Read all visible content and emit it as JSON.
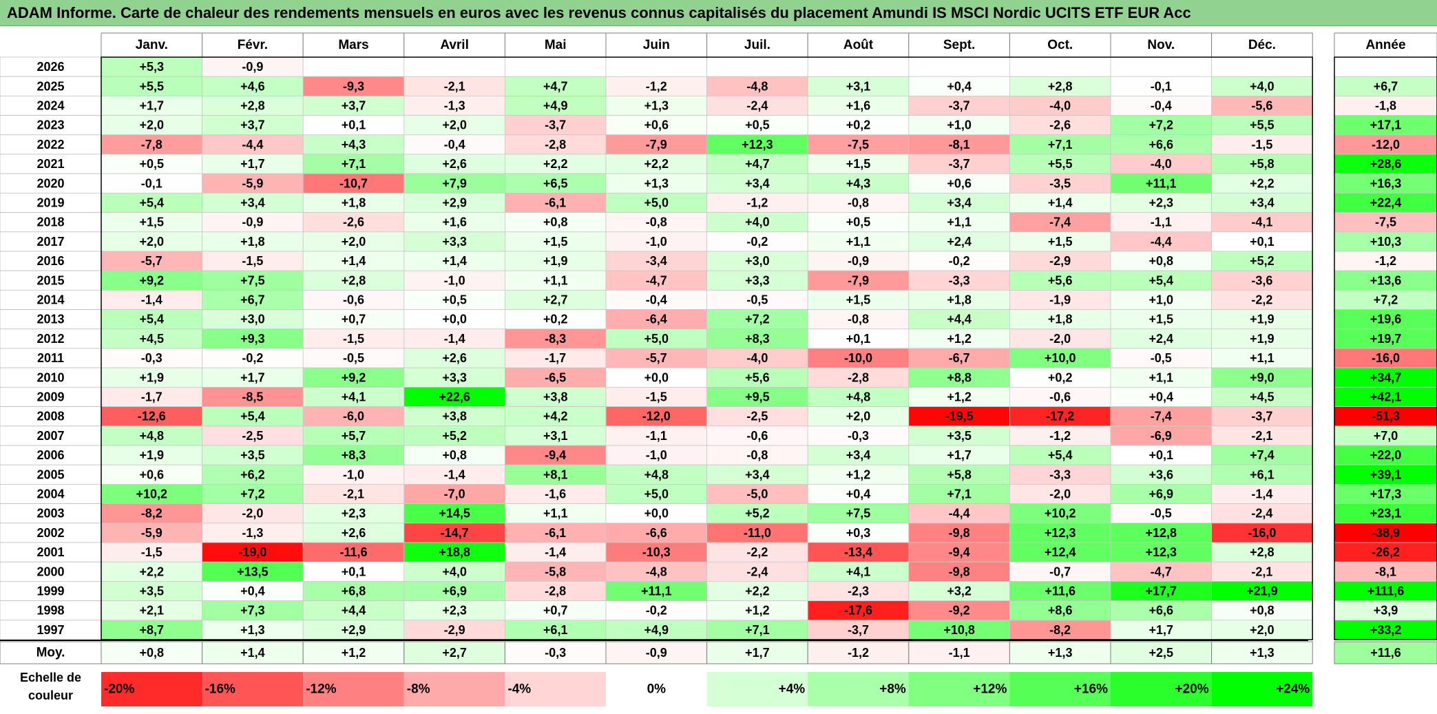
{
  "title": "ADAM Informe. Carte de chaleur des rendements mensuels en euros avec les revenus connus capitalisés du placement Amundi IS MSCI Nordic UCITS ETF EUR Acc",
  "chart_data": {
    "type": "heatmap",
    "months": [
      "Janv.",
      "Févr.",
      "Mars",
      "Avril",
      "Mai",
      "Juin",
      "Juil.",
      "Août",
      "Sept.",
      "Oct.",
      "Nov.",
      "Déc."
    ],
    "year_header": "Année",
    "average_label": "Moy.",
    "rows": [
      {
        "year": "2026",
        "values": [
          "+5,3",
          "-0,9",
          "",
          "",
          "",
          "",
          "",
          "",
          "",
          "",
          "",
          ""
        ],
        "annual": ""
      },
      {
        "year": "2025",
        "values": [
          "+5,5",
          "+4,6",
          "-9,3",
          "-2,1",
          "+4,7",
          "-1,2",
          "-4,8",
          "+3,1",
          "+0,4",
          "+2,8",
          "-0,1",
          "+4,0"
        ],
        "annual": "+6,7"
      },
      {
        "year": "2024",
        "values": [
          "+1,7",
          "+2,8",
          "+3,7",
          "-1,3",
          "+4,9",
          "+1,3",
          "-2,4",
          "+1,6",
          "-3,7",
          "-4,0",
          "-0,4",
          "-5,6"
        ],
        "annual": "-1,8"
      },
      {
        "year": "2023",
        "values": [
          "+2,0",
          "+3,7",
          "+0,1",
          "+2,0",
          "-3,7",
          "+0,6",
          "+0,5",
          "+0,2",
          "+1,0",
          "-2,6",
          "+7,2",
          "+5,5"
        ],
        "annual": "+17,1"
      },
      {
        "year": "2022",
        "values": [
          "-7,8",
          "-4,4",
          "+4,3",
          "-0,4",
          "-2,8",
          "-7,9",
          "+12,3",
          "-7,5",
          "-8,1",
          "+7,1",
          "+6,6",
          "-1,5"
        ],
        "annual": "-12,0"
      },
      {
        "year": "2021",
        "values": [
          "+0,5",
          "+1,7",
          "+7,1",
          "+2,6",
          "+2,2",
          "+2,2",
          "+4,7",
          "+1,5",
          "-3,7",
          "+5,5",
          "-4,0",
          "+5,8"
        ],
        "annual": "+28,6"
      },
      {
        "year": "2020",
        "values": [
          "-0,1",
          "-5,9",
          "-10,7",
          "+7,9",
          "+6,5",
          "+1,3",
          "+3,4",
          "+4,3",
          "+0,6",
          "-3,5",
          "+11,1",
          "+2,2"
        ],
        "annual": "+16,3"
      },
      {
        "year": "2019",
        "values": [
          "+5,4",
          "+3,4",
          "+1,8",
          "+2,9",
          "-6,1",
          "+5,0",
          "-1,2",
          "-0,8",
          "+3,4",
          "+1,4",
          "+2,3",
          "+3,4"
        ],
        "annual": "+22,4"
      },
      {
        "year": "2018",
        "values": [
          "+1,5",
          "-0,9",
          "-2,6",
          "+1,6",
          "+0,8",
          "-0,8",
          "+4,0",
          "+0,5",
          "+1,1",
          "-7,4",
          "-1,1",
          "-4,1"
        ],
        "annual": "-7,5"
      },
      {
        "year": "2017",
        "values": [
          "+2,0",
          "+1,8",
          "+2,0",
          "+3,3",
          "+1,5",
          "-1,0",
          "-0,2",
          "+1,1",
          "+2,4",
          "+1,5",
          "-4,4",
          "+0,1"
        ],
        "annual": "+10,3"
      },
      {
        "year": "2016",
        "values": [
          "-5,7",
          "-1,5",
          "+1,4",
          "+1,4",
          "+1,9",
          "-3,4",
          "+3,0",
          "-0,9",
          "-0,2",
          "-2,9",
          "+0,8",
          "+5,2"
        ],
        "annual": "-1,2"
      },
      {
        "year": "2015",
        "values": [
          "+9,2",
          "+7,5",
          "+2,8",
          "-1,0",
          "+1,1",
          "-4,7",
          "+3,3",
          "-7,9",
          "-3,3",
          "+5,6",
          "+5,4",
          "-3,6"
        ],
        "annual": "+13,6"
      },
      {
        "year": "2014",
        "values": [
          "-1,4",
          "+6,7",
          "-0,6",
          "+0,5",
          "+2,7",
          "-0,4",
          "-0,5",
          "+1,5",
          "+1,8",
          "-1,9",
          "+1,0",
          "-2,2"
        ],
        "annual": "+7,2"
      },
      {
        "year": "2013",
        "values": [
          "+5,4",
          "+3,0",
          "+0,7",
          "+0,0",
          "+0,2",
          "-6,4",
          "+7,2",
          "-0,8",
          "+4,4",
          "+1,8",
          "+1,5",
          "+1,9"
        ],
        "annual": "+19,6"
      },
      {
        "year": "2012",
        "values": [
          "+4,5",
          "+9,3",
          "-1,5",
          "-1,4",
          "-8,3",
          "+5,0",
          "+8,3",
          "+0,1",
          "+1,2",
          "-2,0",
          "+2,4",
          "+1,9"
        ],
        "annual": "+19,7"
      },
      {
        "year": "2011",
        "values": [
          "-0,3",
          "-0,2",
          "-0,5",
          "+2,6",
          "-1,7",
          "-5,7",
          "-4,0",
          "-10,0",
          "-6,7",
          "+10,0",
          "-0,5",
          "+1,1"
        ],
        "annual": "-16,0"
      },
      {
        "year": "2010",
        "values": [
          "+1,9",
          "+1,7",
          "+9,2",
          "+3,3",
          "-6,5",
          "+0,0",
          "+5,6",
          "-2,8",
          "+8,8",
          "+0,2",
          "+1,1",
          "+9,0"
        ],
        "annual": "+34,7"
      },
      {
        "year": "2009",
        "values": [
          "-1,7",
          "-8,5",
          "+4,1",
          "+22,6",
          "+3,8",
          "-1,5",
          "+9,5",
          "+4,8",
          "+1,2",
          "-0,6",
          "+0,4",
          "+4,5"
        ],
        "annual": "+42,1"
      },
      {
        "year": "2008",
        "values": [
          "-12,6",
          "+5,4",
          "-6,0",
          "+3,8",
          "+4,2",
          "-12,0",
          "-2,5",
          "+2,0",
          "-19,5",
          "-17,2",
          "-7,4",
          "-3,7"
        ],
        "annual": "-51,3"
      },
      {
        "year": "2007",
        "values": [
          "+4,8",
          "-2,5",
          "+5,7",
          "+5,2",
          "+3,1",
          "-1,1",
          "-0,6",
          "-0,3",
          "+3,5",
          "-1,2",
          "-6,9",
          "-2,1"
        ],
        "annual": "+7,0"
      },
      {
        "year": "2006",
        "values": [
          "+1,9",
          "+3,5",
          "+8,3",
          "+0,8",
          "-9,4",
          "-1,0",
          "-0,8",
          "+3,4",
          "+1,7",
          "+5,4",
          "+0,1",
          "+7,4"
        ],
        "annual": "+22,0"
      },
      {
        "year": "2005",
        "values": [
          "+0,6",
          "+6,2",
          "-1,0",
          "-1,4",
          "+8,1",
          "+4,8",
          "+3,4",
          "+1,2",
          "+5,8",
          "-3,3",
          "+3,6",
          "+6,1"
        ],
        "annual": "+39,1"
      },
      {
        "year": "2004",
        "values": [
          "+10,2",
          "+7,2",
          "-2,1",
          "-7,0",
          "-1,6",
          "+5,0",
          "-5,0",
          "+0,4",
          "+7,1",
          "-2,0",
          "+6,9",
          "-1,4"
        ],
        "annual": "+17,3"
      },
      {
        "year": "2003",
        "values": [
          "-8,2",
          "-2,0",
          "+2,3",
          "+14,5",
          "+1,1",
          "+0,0",
          "+5,2",
          "+7,5",
          "-4,4",
          "+10,2",
          "-0,5",
          "-2,4"
        ],
        "annual": "+23,1"
      },
      {
        "year": "2002",
        "values": [
          "-5,9",
          "-1,3",
          "+2,6",
          "-14,7",
          "-6,1",
          "-6,6",
          "-11,0",
          "+0,3",
          "-9,8",
          "+12,3",
          "+12,8",
          "-16,0"
        ],
        "annual": "-38,9"
      },
      {
        "year": "2001",
        "values": [
          "-1,5",
          "-19,0",
          "-11,6",
          "+18,8",
          "-1,4",
          "-10,3",
          "-2,2",
          "-13,4",
          "-9,4",
          "+12,4",
          "+12,3",
          "+2,8"
        ],
        "annual": "-26,2"
      },
      {
        "year": "2000",
        "values": [
          "+2,2",
          "+13,5",
          "+0,1",
          "+4,0",
          "-5,8",
          "-4,8",
          "-2,4",
          "+4,1",
          "-9,8",
          "-0,7",
          "-4,7",
          "-2,1"
        ],
        "annual": "-8,1"
      },
      {
        "year": "1999",
        "values": [
          "+3,5",
          "+0,4",
          "+6,8",
          "+6,9",
          "-2,8",
          "+11,1",
          "+2,2",
          "-2,3",
          "+3,2",
          "+11,6",
          "+17,7",
          "+21,9"
        ],
        "annual": "+111,6"
      },
      {
        "year": "1998",
        "values": [
          "+2,1",
          "+7,3",
          "+4,4",
          "+2,3",
          "+0,7",
          "-0,2",
          "+1,2",
          "-17,6",
          "-9,2",
          "+8,6",
          "+6,6",
          "+0,8"
        ],
        "annual": "+3,9"
      },
      {
        "year": "1997",
        "values": [
          "+8,7",
          "+1,3",
          "+2,9",
          "-2,9",
          "+6,1",
          "+4,9",
          "+7,1",
          "-3,7",
          "+10,8",
          "-8,2",
          "+1,7",
          "+2,0"
        ],
        "annual": "+33,2"
      }
    ],
    "averages": {
      "values": [
        "+0,8",
        "+1,4",
        "+1,2",
        "+2,7",
        "-0,3",
        "-0,9",
        "+1,7",
        "-1,2",
        "-1,1",
        "+1,3",
        "+2,5",
        "+1,3"
      ],
      "annual": "+11,6"
    },
    "scale": {
      "label_line1": "Echelle de",
      "label_line2": "couleur",
      "items": [
        "-20%",
        "-16%",
        "-12%",
        "-8%",
        "-4%",
        "0%",
        "+4%",
        "+8%",
        "+12%",
        "+16%",
        "+20%",
        "+24%"
      ]
    }
  }
}
